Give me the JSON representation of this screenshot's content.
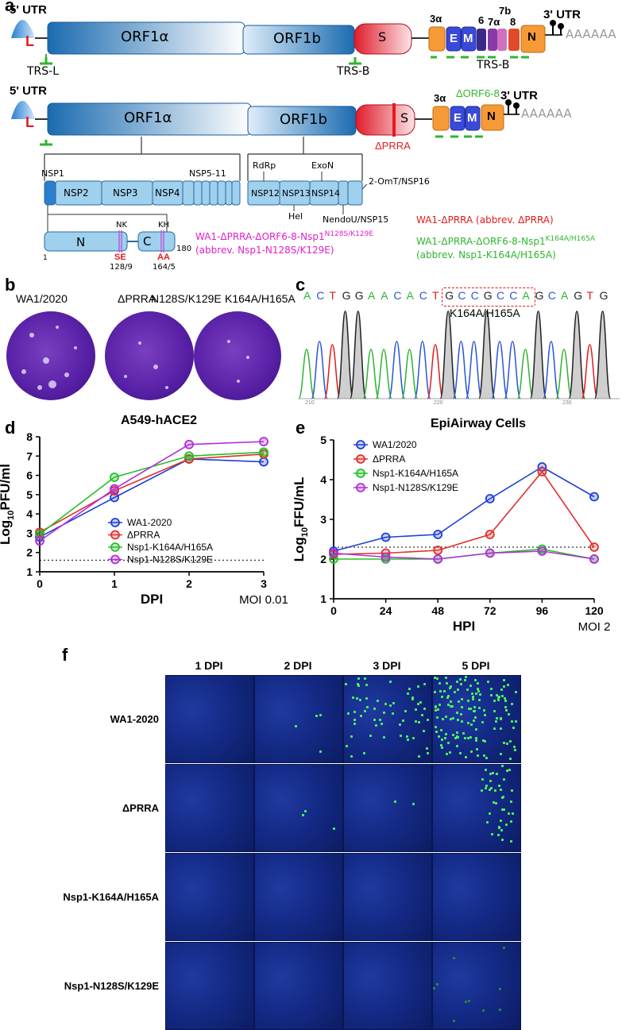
{
  "panel_labels": {
    "a": "a",
    "b": "b",
    "c": "c",
    "d": "d",
    "e": "e",
    "f": "f"
  },
  "genome1": {
    "utr5": "5' UTR",
    "L": "L",
    "orf1a": "ORF1α",
    "orf1b": "ORF1b",
    "s": "S",
    "g3a": "3α",
    "gE": "E",
    "gM": "M",
    "g6": "6",
    "g7a": "7α",
    "g7b": "7b",
    "g8": "8",
    "gN": "N",
    "utr3": "3' UTR",
    "polyA": "AAAAAA",
    "trsL": "TRS-L",
    "trsB1": "TRS-B",
    "trsB2": "TRS-B"
  },
  "genome2": {
    "utr5": "5' UTR",
    "L": "L",
    "orf1a": "ORF1α",
    "orf1b": "ORF1b",
    "s": "S",
    "dprra": "ΔPRRA",
    "g3a": "3α",
    "gE": "E",
    "gM": "M",
    "gN": "N",
    "dorf": "ΔORF6-8",
    "utr3": "3' UTR",
    "polyA": "AAAAAA"
  },
  "nsp": {
    "nsp1": "NSP1",
    "nsp2": "NSP2",
    "nsp3": "NSP3",
    "nsp4": "NSP4",
    "nsp511": "NSP5-11",
    "rdrp": "RdRp",
    "exon": "ExoN",
    "nsp12": "NSP12",
    "nsp13": "NSP13",
    "nsp14": "NSP14",
    "hel": "Hel",
    "nendo": "NendoU/NSP15",
    "omt": "2-OmT/NSP16",
    "N": "N",
    "C": "C",
    "NK": "NK",
    "KH": "KH",
    "one": "1",
    "n180": "180",
    "SE": "SE",
    "AA": "AA",
    "pos1": "128/9",
    "pos2": "164/5"
  },
  "legend_a": {
    "mag1": "WA1-ΔPRRA-ΔORF6-8-Nsp1",
    "mag1_sup": "N128S/K129E",
    "mag2": "(abbrev. Nsp1-N128S/K129E)",
    "red1": "WA1-ΔPRRA (abbrev. ΔPRRA)",
    "grn1": "WA1-ΔPRRA-ΔORF6-8-Nsp1",
    "grn1_sup": "K164A/H165A",
    "grn2": "(abbrev. Nsp1-K164A/H165A)"
  },
  "plaques": {
    "labels": [
      "WA1/2020",
      "ΔPRRA",
      "N128S/K129E",
      "K164A/H165A"
    ]
  },
  "chromatogram": {
    "bases": [
      "A",
      "C",
      "T",
      "G",
      "G",
      "A",
      "A",
      "C",
      "A",
      "C",
      "T",
      "G",
      "C",
      "C",
      "G",
      "C",
      "C",
      "A",
      "G",
      "C",
      "A",
      "G",
      "T",
      "G"
    ],
    "box_label": "K164A/H165A",
    "ticks": [
      "210",
      "220",
      "230"
    ]
  },
  "colors": {
    "wa1": "#1d3fd6",
    "dprra": "#e0302a",
    "k164": "#23c023",
    "n128": "#b030d8",
    "magenta": "#e020c8",
    "green": "#2fb52f",
    "red": "#e01c1c"
  },
  "chart_data": [
    {
      "type": "line",
      "title": "A549-hACE2",
      "xlabel": "DPI",
      "ylabel": "Log10PFU/ml",
      "note": "MOI 0.01",
      "x": [
        0,
        1,
        2,
        3
      ],
      "xlim": [
        0,
        3
      ],
      "ylim": [
        1,
        8
      ],
      "yticks": [
        "1",
        "2",
        "3",
        "4",
        "5",
        "6",
        "7",
        "8"
      ],
      "xticks": [
        "0",
        "1",
        "2",
        "3"
      ],
      "ylabel_base": "Log",
      "ylabel_sub": "10",
      "ylabel_rest": "PFU/ml",
      "limit_of_detection": 1.6,
      "series": [
        {
          "name": "WA1-2020",
          "color": "#1d3fd6",
          "values": [
            2.8,
            4.85,
            6.85,
            6.7
          ]
        },
        {
          "name": "ΔPRRA",
          "color": "#e0302a",
          "values": [
            3.05,
            5.2,
            6.85,
            7.1
          ]
        },
        {
          "name": "Nsp1-K164A/H165A",
          "color": "#23c023",
          "values": [
            2.95,
            5.9,
            7.0,
            7.2
          ]
        },
        {
          "name": "Nsp1-N128S/K129E",
          "color": "#b030d8",
          "values": [
            2.6,
            5.3,
            7.6,
            7.75
          ]
        }
      ]
    },
    {
      "type": "line",
      "title": "EpiAirway  Cells",
      "xlabel": "HPI",
      "ylabel": "Log10FFU/mL",
      "note": "MOI 2",
      "x": [
        0,
        24,
        48,
        72,
        96,
        120
      ],
      "xlim": [
        0,
        120
      ],
      "ylim": [
        1,
        5
      ],
      "yticks": [
        "1",
        "2",
        "3",
        "4",
        "5"
      ],
      "xticks": [
        "0",
        "24",
        "48",
        "72",
        "96",
        "120"
      ],
      "ylabel_base": "Log",
      "ylabel_sub": "10",
      "ylabel_rest": "FFU/mL",
      "limit_of_detection": 2.3,
      "series": [
        {
          "name": "WA1/2020",
          "color": "#1d3fd6",
          "values": [
            2.2,
            2.55,
            2.62,
            3.52,
            4.32,
            3.57
          ]
        },
        {
          "name": "ΔPRRA",
          "color": "#e0302a",
          "values": [
            2.12,
            2.15,
            2.22,
            2.62,
            4.2,
            2.3
          ]
        },
        {
          "name": "Nsp1-K164A/H165A",
          "color": "#23c023",
          "values": [
            2.0,
            2.0,
            2.0,
            2.15,
            2.25,
            2.0
          ]
        },
        {
          "name": "Nsp1-N128S/K129E",
          "color": "#b030d8",
          "values": [
            2.15,
            2.05,
            2.0,
            2.15,
            2.2,
            2.0
          ]
        }
      ]
    }
  ],
  "panel_f": {
    "cols": [
      "1 DPI",
      "2 DPI",
      "3 DPI",
      "5 DPI"
    ],
    "rows": [
      "WA1-2020",
      "ΔPRRA",
      "Nsp1-K164A/H165A",
      "Nsp1-N128S/K129E"
    ]
  }
}
